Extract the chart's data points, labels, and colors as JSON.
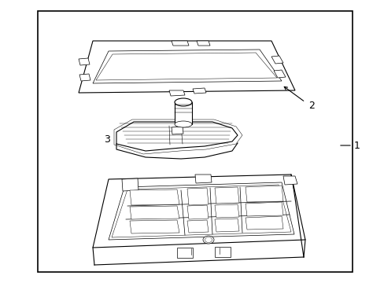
{
  "background_color": "#ffffff",
  "line_color": "#000000",
  "line_width": 0.8,
  "figsize": [
    4.89,
    3.6
  ],
  "dpi": 100,
  "label_1": "1",
  "label_2": "2",
  "label_3": "3"
}
